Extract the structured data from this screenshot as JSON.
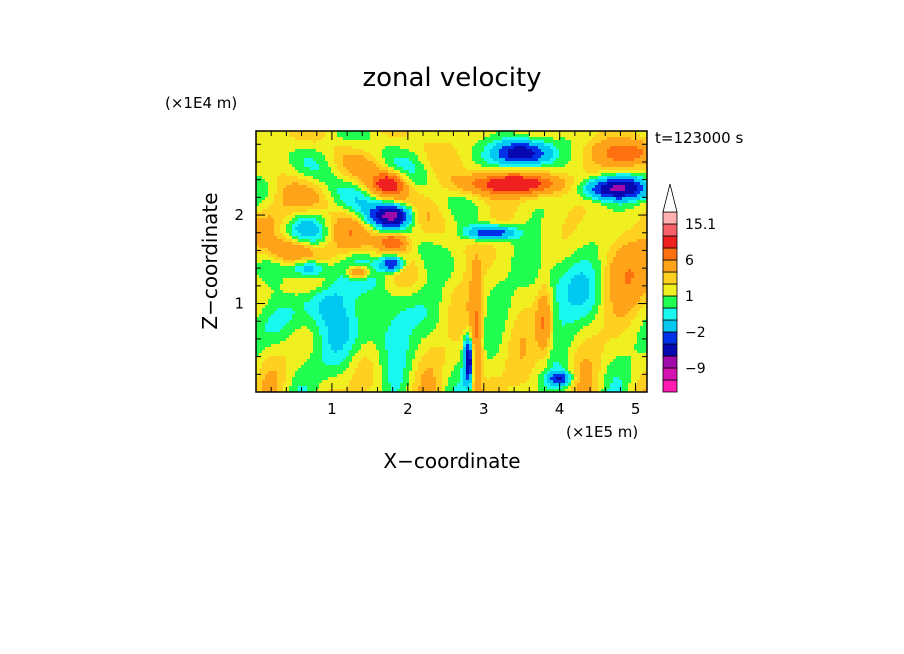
{
  "chart_data": {
    "type": "heatmap",
    "title": "zonal velocity",
    "xlabel": "X−coordinate",
    "ylabel": "Z−coordinate",
    "x_unit": "(×1E5 m)",
    "y_unit": "(×1E4 m)",
    "time_label": "t=123000 s",
    "xlim": [
      0,
      5.15
    ],
    "ylim": [
      0,
      2.95
    ],
    "x_ticks": [
      1,
      2,
      3,
      4,
      5
    ],
    "x_tick_labels": [
      "1",
      "2",
      "3",
      "4",
      "5"
    ],
    "y_ticks": [
      1,
      2
    ],
    "y_tick_labels": [
      "1",
      "2"
    ],
    "colorbar": {
      "levels": [
        -15,
        -12,
        -9,
        -6,
        -4,
        -2,
        -1,
        0,
        1,
        2,
        4,
        6,
        9,
        12,
        15.1
      ],
      "colors": [
        "#ff1ab4",
        "#d312b0",
        "#a00aa8",
        "#0808b0",
        "#0030e8",
        "#00c8f0",
        "#19f8f0",
        "#20ff50",
        "#f0f020",
        "#ffd020",
        "#ffa418",
        "#ff7010",
        "#f02020",
        "#f86068",
        "#ffb0b0",
        "#ffffff"
      ],
      "tick_labels": [
        {
          "value": 15.1,
          "label": "15.1"
        },
        {
          "value": 6,
          "label": "6"
        },
        {
          "value": 1,
          "label": "1"
        },
        {
          "value": -2,
          "label": "−2"
        },
        {
          "value": -9,
          "label": "−9"
        }
      ],
      "extend": "max"
    },
    "grid": false
  }
}
